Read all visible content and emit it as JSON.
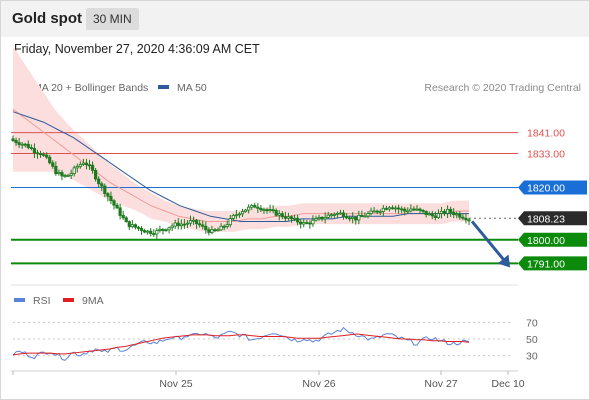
{
  "header": {
    "title": "Gold spot",
    "timeframe": "30 MIN",
    "datetime": "Friday, November 27, 2020 4:36:09 AM CET"
  },
  "legend": {
    "ma20_label": "MA 20 + Bollinger Bands",
    "ma50_label": "MA 50",
    "credit": "Research © 2020 Trading Central",
    "rsi_label": "RSI",
    "rsi_ma_label": "9MA"
  },
  "colors": {
    "candle": "#1f7a1f",
    "bb_fill": "#fcdede",
    "ma20": "#f19a9a",
    "ma50": "#2f5b9a",
    "resistance": "#e05050",
    "pivot": "#1a6fd6",
    "support": "#0b8a0b",
    "last": "#2b2b2b",
    "rsi": "#5b82d6",
    "rsi_ma": "#e02020"
  },
  "chart_data": [
    {
      "type": "candlestick",
      "instrument": "Gold spot",
      "timeframe": "30 MIN",
      "x_ticks": [
        "Nov 25",
        "Nov 26",
        "Nov 27",
        "Dec 10"
      ],
      "ylim": [
        1785,
        1855
      ],
      "levels": [
        {
          "value": 1841.0,
          "label": "1841.00",
          "role": "resistance"
        },
        {
          "value": 1833.0,
          "label": "1833.00",
          "role": "resistance"
        },
        {
          "value": 1820.0,
          "label": "1820.00",
          "role": "pivot"
        },
        {
          "value": 1808.23,
          "label": "1808.23",
          "role": "last"
        },
        {
          "value": 1800.0,
          "label": "1800.00",
          "role": "support"
        },
        {
          "value": 1791.0,
          "label": "1791.00",
          "role": "support"
        }
      ],
      "forecast_arrow": {
        "from": 1808.23,
        "to": 1791.0
      },
      "close_path": [
        1838,
        1837,
        1836,
        1834,
        1833,
        1830,
        1826,
        1824,
        1825,
        1828,
        1830,
        1827,
        1822,
        1818,
        1814,
        1810,
        1806,
        1805,
        1804,
        1803,
        1803,
        1804,
        1805,
        1806,
        1806,
        1807,
        1806,
        1804,
        1803,
        1804,
        1806,
        1809,
        1811,
        1812,
        1813,
        1812,
        1811,
        1810,
        1809,
        1808,
        1807,
        1806,
        1807,
        1808,
        1809,
        1810,
        1810,
        1809,
        1808,
        1809,
        1810,
        1811,
        1812,
        1813,
        1812,
        1811,
        1812,
        1811,
        1810,
        1809,
        1810,
        1811,
        1810,
        1809,
        1808
      ],
      "ma20_path": [
        1850,
        1846,
        1842,
        1838,
        1834,
        1830,
        1826,
        1822,
        1819,
        1816,
        1813,
        1811,
        1809,
        1808,
        1807,
        1807,
        1807,
        1808,
        1808,
        1809,
        1809,
        1810,
        1810,
        1810,
        1810,
        1810,
        1810,
        1810,
        1810,
        1810,
        1810,
        1810,
        1811,
        1811
      ],
      "ma50_path": [
        1849,
        1847,
        1845,
        1842,
        1839,
        1835,
        1831,
        1827,
        1823,
        1819,
        1816,
        1813,
        1811,
        1809,
        1808,
        1807,
        1807,
        1807,
        1807,
        1808,
        1808,
        1808,
        1809,
        1809,
        1809,
        1809,
        1810,
        1810,
        1810,
        1810,
        1810
      ],
      "band_width_path": [
        24,
        20,
        16,
        12,
        10,
        9,
        8,
        7,
        6,
        5,
        5,
        4,
        4,
        4,
        4,
        4,
        4,
        4,
        4,
        4,
        4,
        4,
        4,
        4,
        4,
        4,
        4,
        4,
        4,
        4,
        4,
        4,
        4,
        4
      ]
    },
    {
      "type": "line",
      "title": "RSI",
      "series": [
        {
          "name": "RSI"
        },
        {
          "name": "9MA"
        }
      ],
      "y_ticks": [
        70,
        50,
        30
      ],
      "ylim": [
        15,
        85
      ],
      "rsi_path": [
        32,
        35,
        31,
        29,
        33,
        36,
        30,
        27,
        34,
        31,
        35,
        38,
        33,
        36,
        39,
        37,
        41,
        44,
        47,
        45,
        48,
        52,
        50,
        54,
        53,
        57,
        55,
        51,
        54,
        58,
        56,
        53,
        49,
        52,
        56,
        59,
        55,
        51,
        48,
        52,
        47,
        50,
        54,
        58,
        62,
        59,
        56,
        52,
        49,
        52,
        56,
        53,
        50,
        47,
        45,
        49,
        52,
        48,
        46,
        44,
        47,
        45
      ],
      "rsi_ma_path": [
        31,
        32,
        33,
        33,
        33,
        33,
        32,
        32,
        33,
        34,
        35,
        36,
        37,
        38,
        40,
        41,
        43,
        45,
        47,
        49,
        51,
        52,
        53,
        54,
        55,
        55,
        55,
        54,
        54,
        54,
        55,
        55,
        54,
        53,
        53,
        53,
        53,
        52,
        51,
        51,
        51,
        51,
        52,
        53,
        54,
        55,
        56,
        55,
        54,
        53,
        52,
        51,
        50,
        50,
        49,
        49,
        48,
        48,
        47,
        47,
        47,
        46
      ]
    }
  ]
}
